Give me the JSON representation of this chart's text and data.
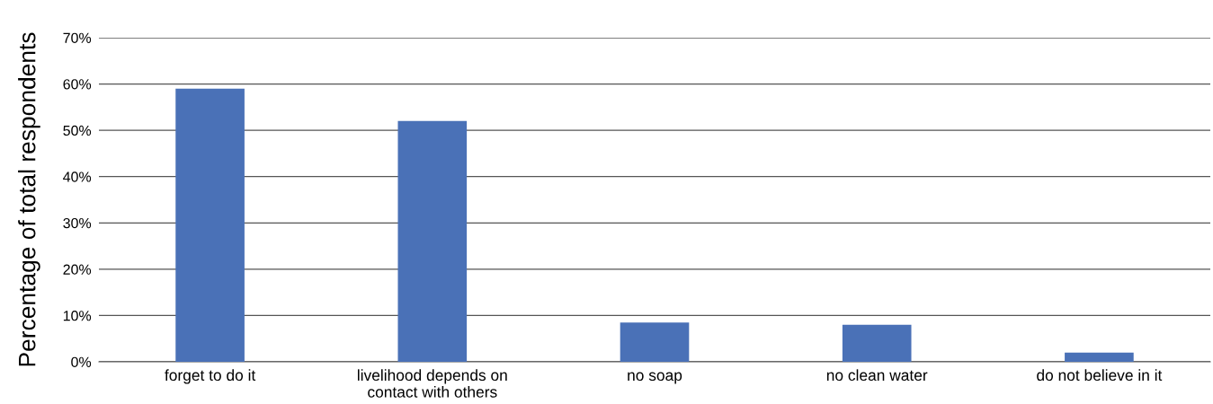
{
  "chart_data": {
    "type": "bar",
    "ylabel": "Percentage of total respondents",
    "categories": [
      "forget to do it",
      "livelihood depends on\ncontact with others",
      "no soap",
      "no clean water",
      "do not believe in it"
    ],
    "values": [
      59,
      52,
      8.5,
      8,
      2
    ],
    "color": "#4a71b7",
    "ylim": [
      0,
      70
    ],
    "yticks": [
      {
        "value": 0,
        "label": "0%"
      },
      {
        "value": 10,
        "label": "10%"
      },
      {
        "value": 20,
        "label": "20%"
      },
      {
        "value": 30,
        "label": "30%"
      },
      {
        "value": 40,
        "label": "40%"
      },
      {
        "value": 50,
        "label": "50%"
      },
      {
        "value": 60,
        "label": "60%"
      },
      {
        "value": 70,
        "label": "70%"
      }
    ],
    "grid": "y"
  }
}
